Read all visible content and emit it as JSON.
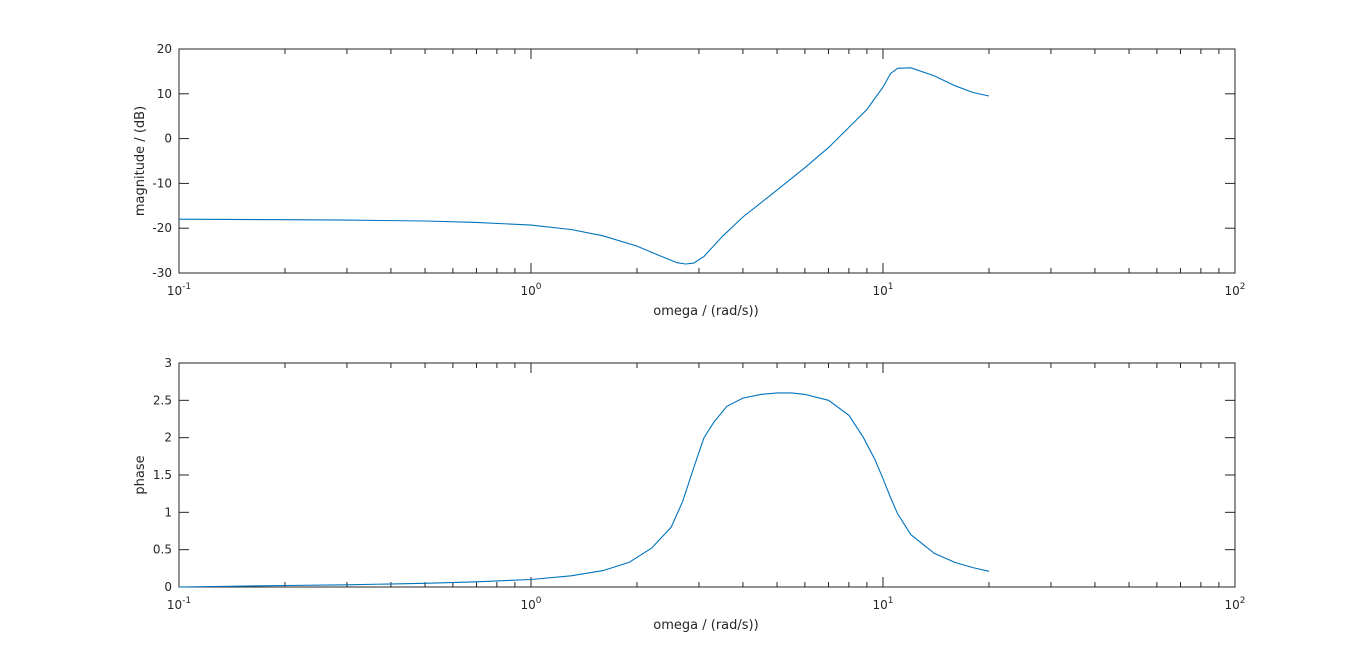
{
  "chart_data": [
    {
      "type": "line",
      "title": "",
      "xlabel": "omega / (rad/s))",
      "ylabel": "magnitude / (dB)",
      "xscale": "log",
      "xlim": [
        0.1,
        100
      ],
      "ylim": [
        -30,
        20
      ],
      "xticks": [
        0.1,
        1,
        10,
        100
      ],
      "xtick_labels": [
        {
          "base": "10",
          "exp": "-1"
        },
        {
          "base": "10",
          "exp": "0"
        },
        {
          "base": "10",
          "exp": "1"
        },
        {
          "base": "10",
          "exp": "2"
        }
      ],
      "yticks": [
        -30,
        -20,
        -10,
        0,
        10,
        20
      ],
      "ytick_labels": [
        "-30",
        "-20",
        "-10",
        "0",
        "10",
        "20"
      ],
      "grid": false,
      "color": "#0072bd",
      "series": [
        {
          "x": [
            0.1,
            0.2,
            0.3,
            0.5,
            0.7,
            1.0,
            1.3,
            1.6,
            2.0,
            2.3,
            2.6,
            2.75,
            2.9,
            3.1,
            3.5,
            4.0,
            5.0,
            6.0,
            7.0,
            8.0,
            9.0,
            10.0,
            10.5,
            11.0,
            12.0,
            14.0,
            16.0,
            18.0,
            20.0
          ],
          "y": [
            -18.0,
            -18.1,
            -18.2,
            -18.4,
            -18.7,
            -19.3,
            -20.3,
            -21.7,
            -24.0,
            -26.0,
            -27.7,
            -28.0,
            -27.8,
            -26.3,
            -21.8,
            -17.5,
            -11.5,
            -6.5,
            -2.0,
            2.5,
            6.5,
            11.5,
            14.5,
            15.7,
            15.8,
            14.0,
            11.8,
            10.3,
            9.5
          ]
        }
      ]
    },
    {
      "type": "line",
      "title": "",
      "xlabel": "omega / (rad/s))",
      "ylabel": "phase",
      "xscale": "log",
      "xlim": [
        0.1,
        100
      ],
      "ylim": [
        0,
        3
      ],
      "xticks": [
        0.1,
        1,
        10,
        100
      ],
      "xtick_labels": [
        {
          "base": "10",
          "exp": "-1"
        },
        {
          "base": "10",
          "exp": "0"
        },
        {
          "base": "10",
          "exp": "1"
        },
        {
          "base": "10",
          "exp": "2"
        }
      ],
      "yticks": [
        0,
        0.5,
        1,
        1.5,
        2,
        2.5,
        3
      ],
      "ytick_labels": [
        "0",
        "0.5",
        "1",
        "1.5",
        "2",
        "2.5",
        "3"
      ],
      "grid": false,
      "color": "#0072bd",
      "series": [
        {
          "x": [
            0.1,
            0.2,
            0.3,
            0.5,
            0.7,
            1.0,
            1.3,
            1.6,
            1.9,
            2.2,
            2.5,
            2.7,
            2.9,
            3.1,
            3.3,
            3.6,
            4.0,
            4.5,
            5.0,
            5.5,
            6.0,
            7.0,
            8.0,
            8.8,
            9.5,
            10.0,
            10.5,
            11.0,
            12.0,
            14.0,
            16.0,
            18.0,
            20.0
          ],
          "y": [
            0.0,
            0.02,
            0.03,
            0.05,
            0.07,
            0.1,
            0.15,
            0.22,
            0.33,
            0.52,
            0.8,
            1.15,
            1.6,
            2.0,
            2.2,
            2.42,
            2.53,
            2.58,
            2.6,
            2.6,
            2.58,
            2.5,
            2.3,
            2.0,
            1.7,
            1.45,
            1.2,
            0.98,
            0.7,
            0.45,
            0.33,
            0.26,
            0.21
          ]
        }
      ]
    }
  ]
}
